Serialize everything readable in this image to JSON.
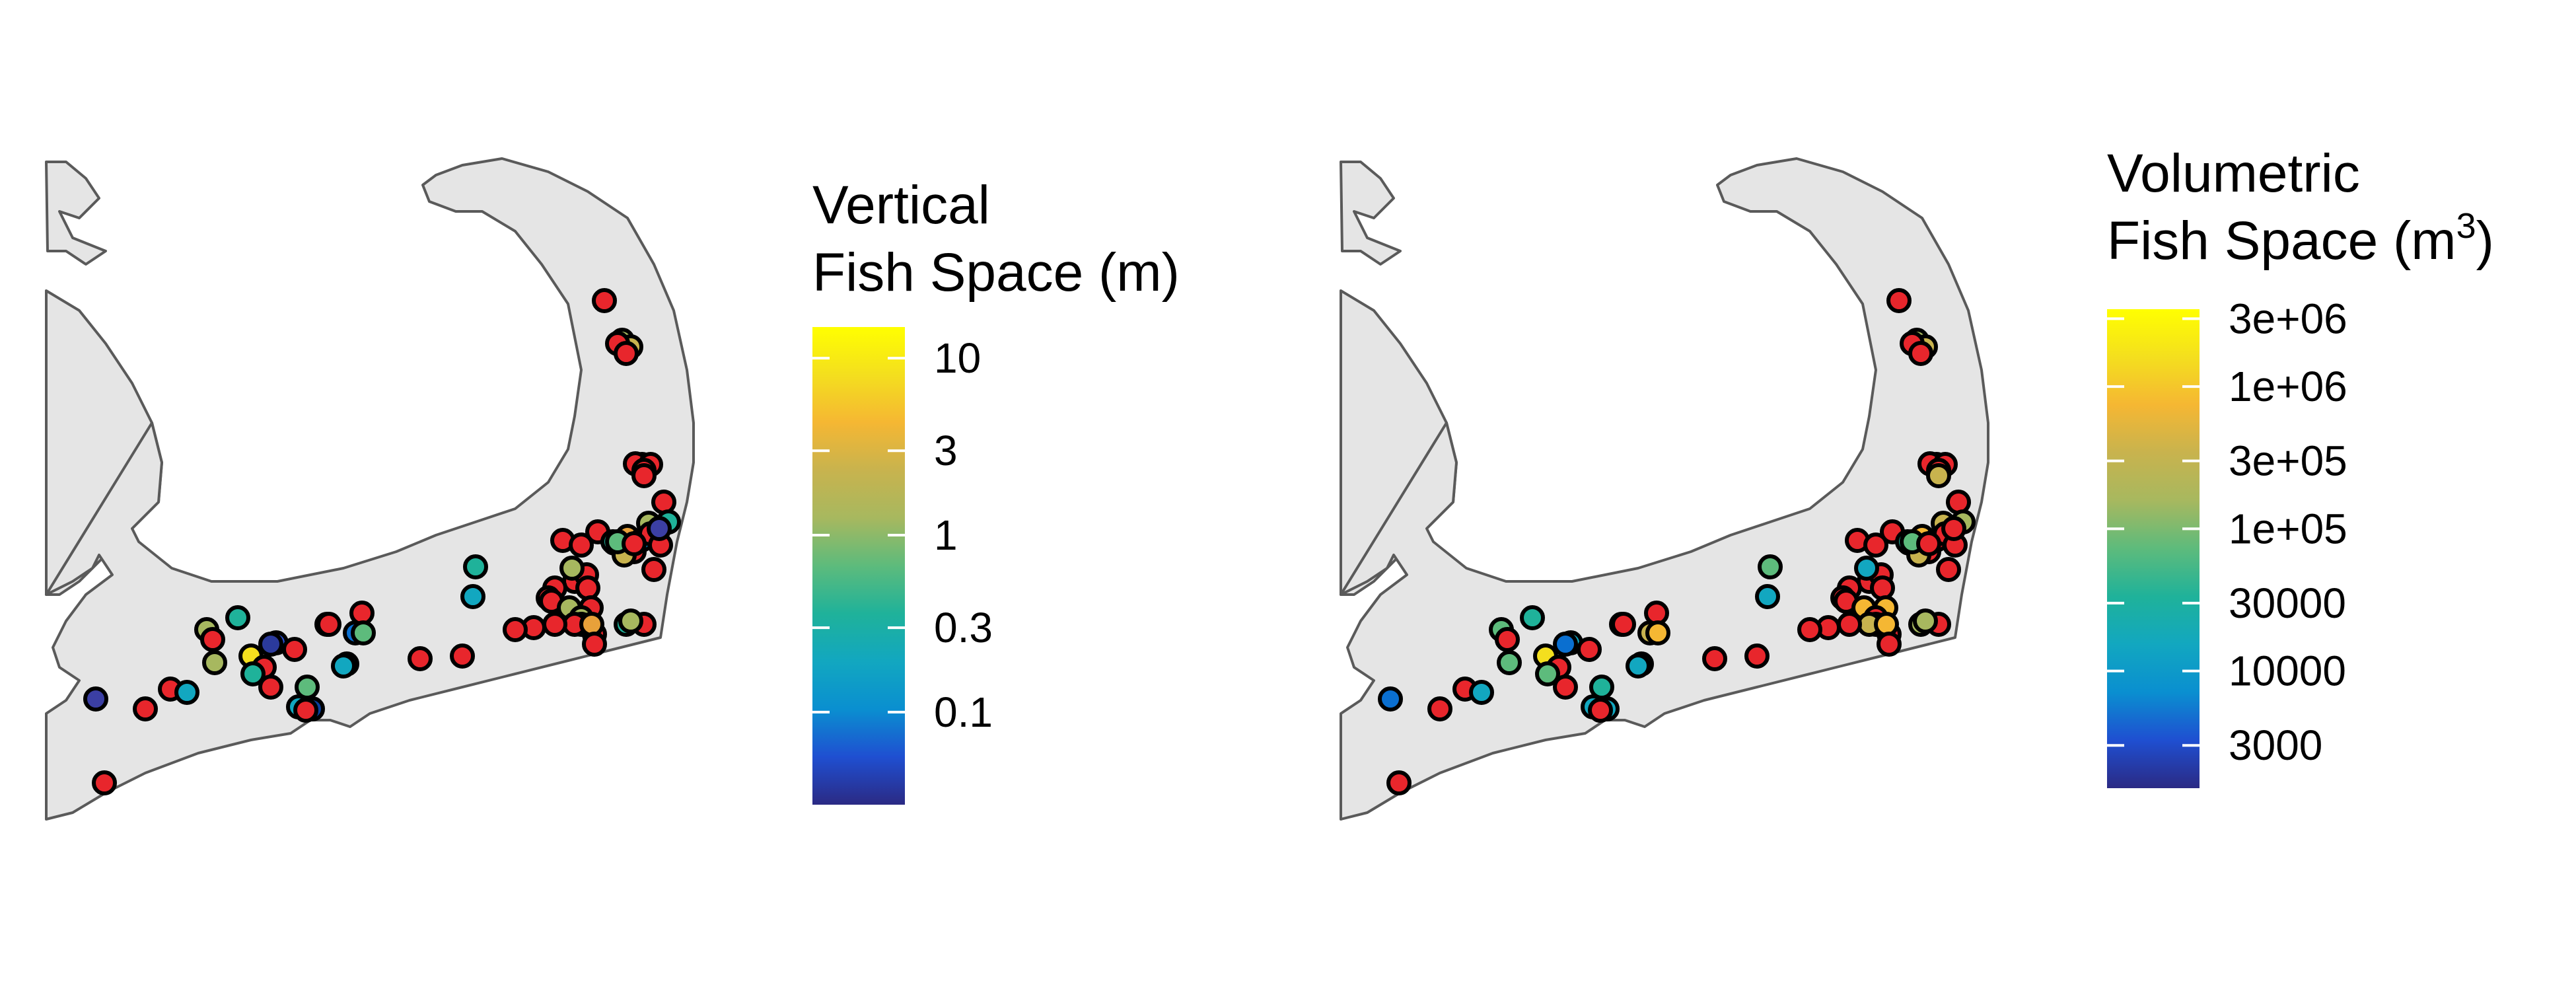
{
  "panels": [
    {
      "id": "vertical",
      "legend": {
        "title_lines": [
          "Vertical",
          "Fish Space (m)"
        ],
        "superscript": "",
        "ticks": [
          "10",
          "3",
          "1",
          "0.3",
          "0.1"
        ],
        "tick_values": [
          10,
          3,
          1,
          0.3,
          0.1
        ],
        "range": [
          0.03,
          15
        ],
        "scale": "log"
      }
    },
    {
      "id": "volumetric",
      "legend": {
        "title_lines": [
          "Volumetric",
          "Fish Space (m"
        ],
        "superscript": "3",
        "title_suffix": ")",
        "ticks": [
          "3e+06",
          "1e+06",
          "3e+05",
          "1e+05",
          "30000",
          "10000",
          "3000"
        ],
        "tick_values": [
          3000000,
          1000000,
          300000,
          100000,
          30000,
          10000,
          3000
        ],
        "range": [
          1500,
          3500000
        ],
        "scale": "log"
      }
    }
  ],
  "colors": {
    "scale": [
      "#2b2a84",
      "#1f4fd1",
      "#0a8fd0",
      "#12a7c0",
      "#1fb29a",
      "#5dbb7c",
      "#a7b85f",
      "#c8b34e",
      "#f5b733",
      "#f4df1e",
      "#ffff00"
    ],
    "above_scale": "#e8262c",
    "outline": "#000000",
    "land": "#e5e5e5",
    "coast": "#5a5a5a"
  },
  "site_marks": {
    "vertical": [
      {
        "c": "#e8262c"
      },
      {
        "c": "#a7b85f"
      },
      {
        "c": "#c8b34e"
      },
      {
        "c": "#e8262c"
      },
      {
        "c": "#e8262c"
      },
      {
        "c": "#12a7c0"
      },
      {
        "c": "#e8262c"
      },
      {
        "c": "#e8262c"
      },
      {
        "c": "#e8262c"
      },
      {
        "c": "#e8262c"
      },
      {
        "c": "#e8262c"
      },
      {
        "c": "#1fb29a"
      },
      {
        "c": "#a7b85f"
      },
      {
        "c": "#e8a13a"
      },
      {
        "c": "#0a8fd0"
      },
      {
        "c": "#e8262c"
      },
      {
        "c": "#e8262c"
      },
      {
        "c": "#e8262c"
      },
      {
        "c": "#5dbb7c"
      },
      {
        "c": "#e8262c"
      },
      {
        "c": "#e8262c"
      },
      {
        "c": "#e8262c"
      },
      {
        "c": "#3b3fa4"
      },
      {
        "c": "#e8262c"
      },
      {
        "c": "#c8b34e"
      },
      {
        "c": "#1fb29a"
      },
      {
        "c": "#5dbb7c"
      },
      {
        "c": "#e8262c"
      },
      {
        "c": "#e8262c"
      },
      {
        "c": "#e8262c"
      },
      {
        "c": "#1fb29a"
      },
      {
        "c": "#12a7c0"
      },
      {
        "c": "#a7b85f"
      },
      {
        "c": "#e8262c"
      },
      {
        "c": "#e8262c"
      },
      {
        "c": "#e8262c"
      },
      {
        "c": "#e8262c"
      },
      {
        "c": "#a7b85f"
      },
      {
        "c": "#e8262c"
      },
      {
        "c": "#a7b85f"
      },
      {
        "c": "#e8262c"
      },
      {
        "c": "#e8262c"
      },
      {
        "c": "#e8262c"
      },
      {
        "c": "#e8a13a"
      },
      {
        "c": "#e8262c"
      },
      {
        "c": "#1fb29a"
      },
      {
        "c": "#e8262c"
      },
      {
        "c": "#a7b85f"
      },
      {
        "c": "#e8262c"
      },
      {
        "c": "#f4df1e"
      },
      {
        "c": "#2b4fd1"
      },
      {
        "c": "#e8262c"
      },
      {
        "c": "#e8262c"
      },
      {
        "c": "#1fb29a"
      },
      {
        "c": "#e8262c"
      },
      {
        "c": "#5dbb7c"
      },
      {
        "c": "#12a7c0"
      },
      {
        "c": "#0a3f9c"
      },
      {
        "c": "#e8262c"
      },
      {
        "c": "#12a7c0"
      },
      {
        "c": "#0a6fd0"
      },
      {
        "c": "#e8262c"
      },
      {
        "c": "#a7b85f"
      },
      {
        "c": "#5dbb7c"
      },
      {
        "c": "#e8262c"
      },
      {
        "c": "#2b3a9c"
      },
      {
        "c": "#12a7c0"
      },
      {
        "c": "#e8262c"
      },
      {
        "c": "#e8262c"
      },
      {
        "c": "#e8262c"
      },
      {
        "c": "#e8262c"
      },
      {
        "c": "#a7b85f"
      },
      {
        "c": "#e8262c"
      },
      {
        "c": "#1fb29a"
      },
      {
        "c": "#a7b85f"
      },
      {
        "c": "#3b3fa4"
      },
      {
        "c": "#e8262c"
      },
      {
        "c": "#e8262c"
      },
      {
        "c": "#12a7c0"
      },
      {
        "c": "#e8262c"
      }
    ],
    "volumetric": [
      {
        "c": "#e8262c"
      },
      {
        "c": "#a7b85f"
      },
      {
        "c": "#c8b34e"
      },
      {
        "c": "#e8262c"
      },
      {
        "c": "#e8262c"
      },
      {
        "c": "#12a7c0"
      },
      {
        "c": "#e8262c"
      },
      {
        "c": "#e8262c"
      },
      {
        "c": "#e8262c"
      },
      {
        "c": "#c8b34e"
      },
      {
        "c": "#e8262c"
      },
      {
        "c": "#a7b85f"
      },
      {
        "c": "#c8b34e"
      },
      {
        "c": "#f5b733"
      },
      {
        "c": "#e8262c"
      },
      {
        "c": "#e8262c"
      },
      {
        "c": "#e8262c"
      },
      {
        "c": "#e8262c"
      },
      {
        "c": "#5dbb7c"
      },
      {
        "c": "#e8262c"
      },
      {
        "c": "#e8262c"
      },
      {
        "c": "#e8262c"
      },
      {
        "c": "#e8262c"
      },
      {
        "c": "#e8262c"
      },
      {
        "c": "#c8b34e"
      },
      {
        "c": "#1fb29a"
      },
      {
        "c": "#5dbb7c"
      },
      {
        "c": "#e8262c"
      },
      {
        "c": "#e8262c"
      },
      {
        "c": "#e8262c"
      },
      {
        "c": "#5dbb7c"
      },
      {
        "c": "#12a7c0"
      },
      {
        "c": "#12a7c0"
      },
      {
        "c": "#e8262c"
      },
      {
        "c": "#e8262c"
      },
      {
        "c": "#e8262c"
      },
      {
        "c": "#e8262c"
      },
      {
        "c": "#f5b733"
      },
      {
        "c": "#f5b733"
      },
      {
        "c": "#e8262c"
      },
      {
        "c": "#e8262c"
      },
      {
        "c": "#e8262c"
      },
      {
        "c": "#c8b34e"
      },
      {
        "c": "#f5b733"
      },
      {
        "c": "#e8262c"
      },
      {
        "c": "#a7b85f"
      },
      {
        "c": "#e8262c"
      },
      {
        "c": "#a7b85f"
      },
      {
        "c": "#e8262c"
      },
      {
        "c": "#f4df1e"
      },
      {
        "c": "#12a7c0"
      },
      {
        "c": "#e8262c"
      },
      {
        "c": "#e8262c"
      },
      {
        "c": "#5dbb7c"
      },
      {
        "c": "#e8262c"
      },
      {
        "c": "#1fb29a"
      },
      {
        "c": "#12a7c0"
      },
      {
        "c": "#12a7c0"
      },
      {
        "c": "#e8262c"
      },
      {
        "c": "#5dbb7c"
      },
      {
        "c": "#c8b34e"
      },
      {
        "c": "#e8262c"
      },
      {
        "c": "#c8b34e"
      },
      {
        "c": "#f5b733"
      },
      {
        "c": "#e8262c"
      },
      {
        "c": "#0a6fd0"
      },
      {
        "c": "#12a7c0"
      },
      {
        "c": "#e8262c"
      },
      {
        "c": "#e8262c"
      },
      {
        "c": "#e8262c"
      },
      {
        "c": "#e8262c"
      },
      {
        "c": "#5dbb7c"
      },
      {
        "c": "#e8262c"
      },
      {
        "c": "#1fb29a"
      },
      {
        "c": "#5dbb7c"
      },
      {
        "c": "#0a6fd0"
      },
      {
        "c": "#e8262c"
      },
      {
        "c": "#e8262c"
      },
      {
        "c": "#12a7c0"
      },
      {
        "c": "#e8262c"
      }
    ]
  }
}
